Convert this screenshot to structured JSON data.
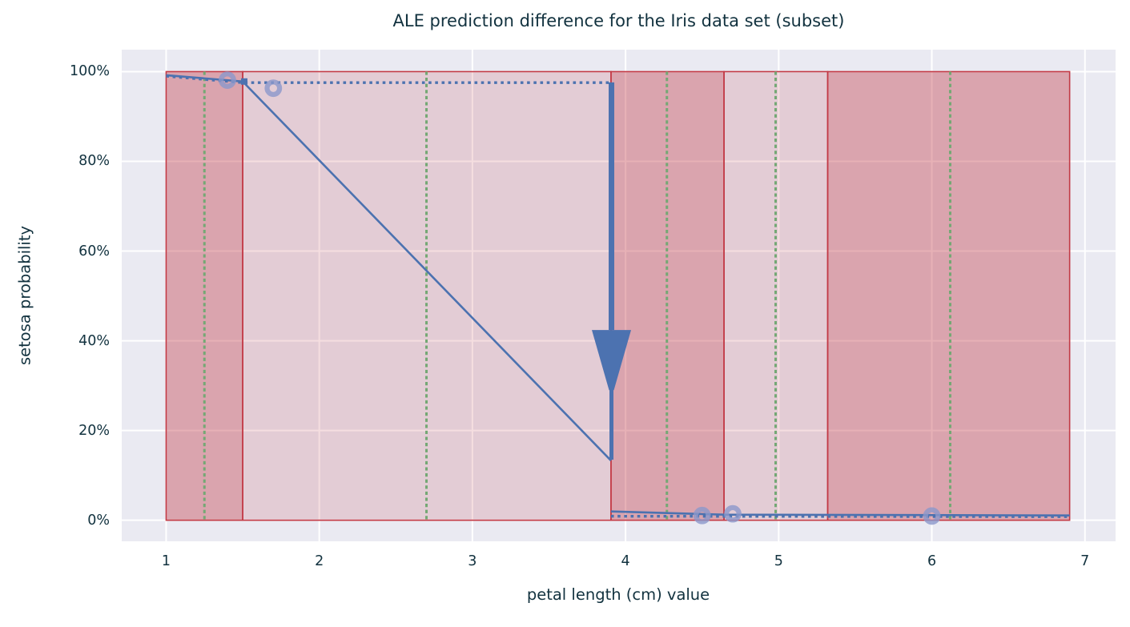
{
  "chart_data": {
    "type": "line",
    "title": "ALE prediction difference for the Iris data set (subset)",
    "xlabel": "petal length (cm) value",
    "ylabel": "setosa probability",
    "xlim": [
      0.71,
      7.2
    ],
    "ylim": [
      -0.047,
      1.049
    ],
    "grid": true,
    "legend": false,
    "x_ticks": [
      {
        "value": 1,
        "label": "1"
      },
      {
        "value": 2,
        "label": "2"
      },
      {
        "value": 3,
        "label": "3"
      },
      {
        "value": 4,
        "label": "4"
      },
      {
        "value": 5,
        "label": "5"
      },
      {
        "value": 6,
        "label": "6"
      },
      {
        "value": 7,
        "label": "7"
      }
    ],
    "y_ticks": [
      {
        "value": 0.0,
        "label": "0%"
      },
      {
        "value": 0.2,
        "label": "20%"
      },
      {
        "value": 0.4,
        "label": "40%"
      },
      {
        "value": 0.6,
        "label": "60%"
      },
      {
        "value": 0.8,
        "label": "80%"
      },
      {
        "value": 1.0,
        "label": "100%"
      }
    ],
    "series": [
      {
        "name": "ale-curve",
        "style": "solid",
        "segments": [
          [
            [
              1.0,
              0.992
            ],
            [
              1.5,
              0.978
            ],
            [
              3.905,
              0.133
            ]
          ],
          [
            [
              3.905,
              0.0196
            ],
            [
              4.643,
              0.0125
            ],
            [
              6.9,
              0.0107
            ]
          ]
        ]
      },
      {
        "name": "instance-prediction-dotted",
        "style": "dotted",
        "segments": [
          [
            [
              1.0,
              0.99
            ],
            [
              1.5,
              0.9755
            ],
            [
              3.905,
              0.9755
            ]
          ],
          [
            [
              3.905,
              0.009
            ],
            [
              6.9,
              0.008
            ]
          ]
        ]
      }
    ],
    "instance_markers": {
      "shape": "ring",
      "points": [
        [
          1.4,
          0.981
        ],
        [
          1.7,
          0.963
        ],
        [
          4.5,
          0.0105
        ],
        [
          4.7,
          0.0143
        ],
        [
          6.0,
          0.0093
        ]
      ]
    },
    "corner_marker": {
      "shape": "square",
      "point": [
        1.51,
        0.978
      ]
    },
    "drop_arrow": {
      "x": 3.908,
      "y_from": 0.976,
      "y_head_top": 0.424,
      "y_tip": 0.29,
      "y_to": 0.135
    },
    "bands": [
      {
        "x0": 1.0,
        "x1": 1.5,
        "shade": "dark"
      },
      {
        "x0": 1.5,
        "x1": 3.905,
        "shade": "light"
      },
      {
        "x0": 3.905,
        "x1": 4.643,
        "shade": "dark"
      },
      {
        "x0": 4.643,
        "x1": 5.32,
        "shade": "light"
      },
      {
        "x0": 5.32,
        "x1": 6.9,
        "shade": "dark"
      }
    ],
    "split_lines": {
      "values": [
        1.25,
        2.7,
        4.27,
        4.98,
        6.12
      ]
    },
    "colors": {
      "line": "#4c72b0",
      "marker": "#8b97cb",
      "band_fill": "#c43c48",
      "band_border": "#c23945",
      "split_line": "#74a874",
      "plot_bg": "#eaeaf2",
      "grid": "#ffffff",
      "text": "#12323f"
    }
  }
}
